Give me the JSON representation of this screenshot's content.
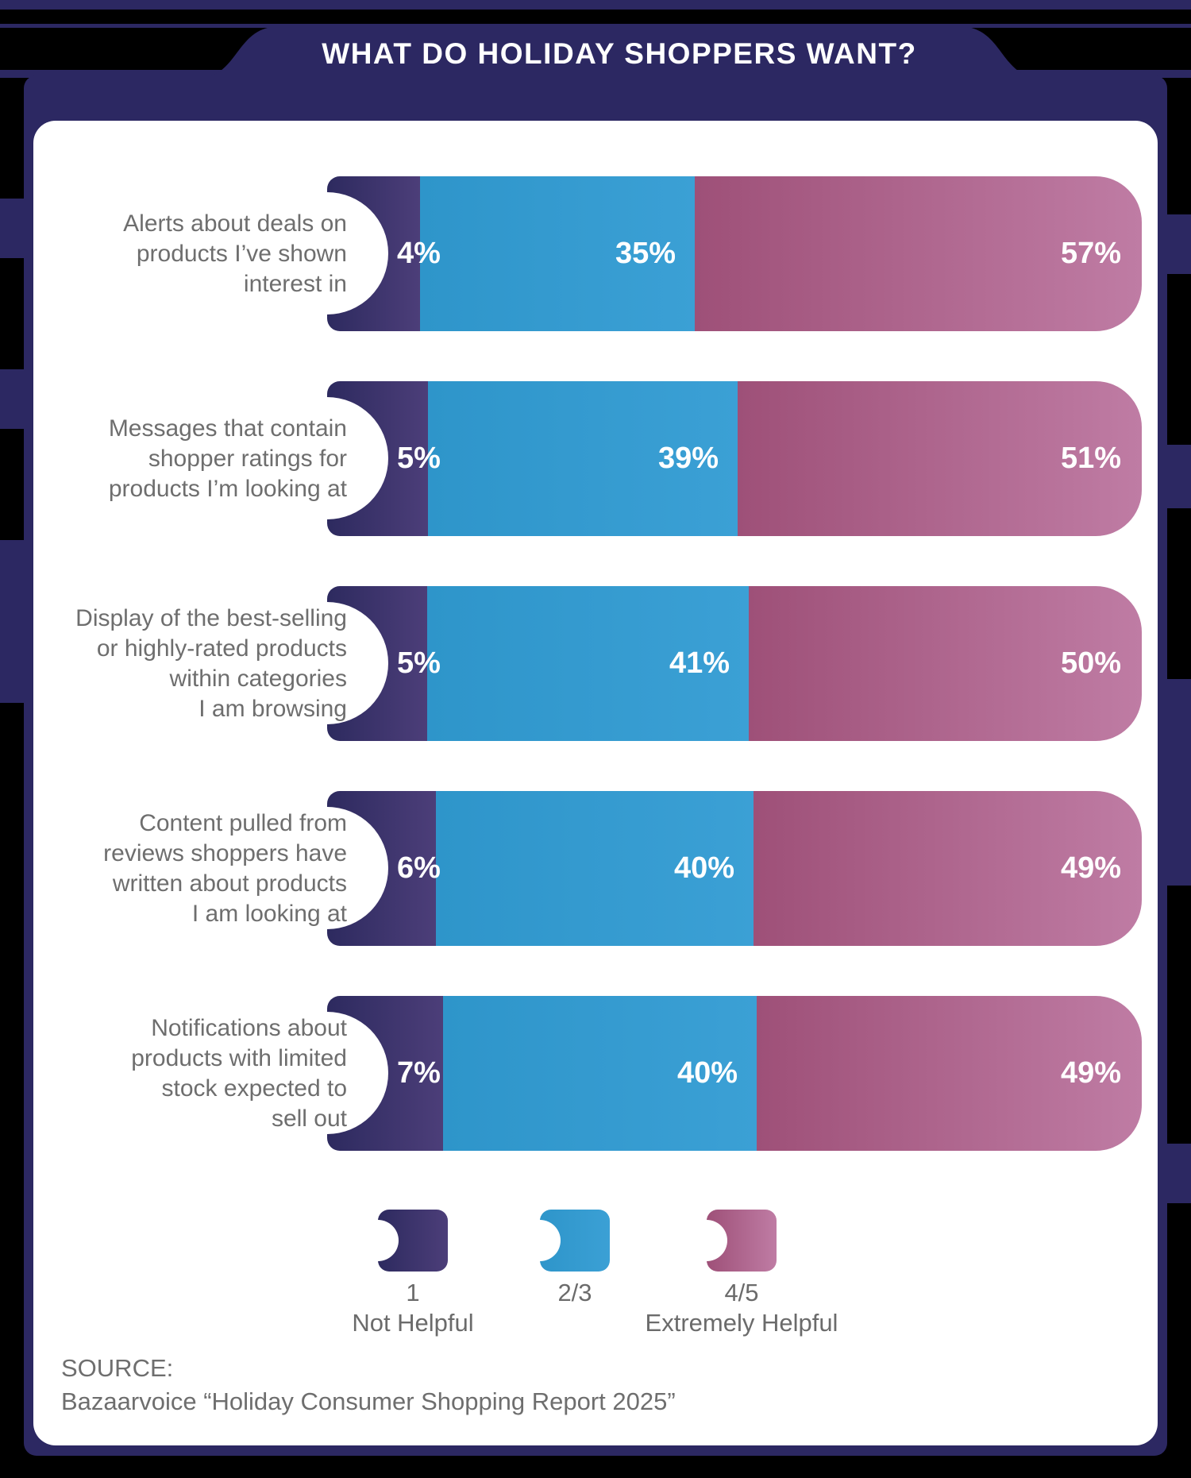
{
  "title": "WHAT DO HOLIDAY SHOPPERS WANT?",
  "colors": {
    "navy_bg": "#2c2862",
    "segment1_start": "#2d2a5f",
    "segment1_end": "#4c3e79",
    "segment2_start": "#2e95ca",
    "segment2_end": "#3ba0d5",
    "segment3_start": "#9e5078",
    "segment3_end": "#bf7ca4",
    "label_gray": "#6e6e6e",
    "value_text": "#ffffff"
  },
  "chart_data": {
    "type": "bar",
    "orientation": "horizontal-stacked",
    "value_suffix": "%",
    "categories": [
      [
        "Alerts about deals on",
        "products I’ve shown",
        "interest in"
      ],
      [
        "Messages that contain",
        "shopper ratings for",
        "products I’m looking at"
      ],
      [
        "Display of the best-selling",
        "or highly-rated products",
        "within categories",
        "I am browsing"
      ],
      [
        "Content pulled from",
        "reviews shoppers have",
        "written about products",
        "I am looking at"
      ],
      [
        "Notifications about",
        "products with limited",
        "stock expected to",
        "sell out"
      ]
    ],
    "series": [
      {
        "name": "1 Not Helpful",
        "values": [
          4,
          5,
          5,
          6,
          7
        ]
      },
      {
        "name": "2/3",
        "values": [
          35,
          39,
          41,
          40,
          40
        ]
      },
      {
        "name": "4/5 Extremely Helpful",
        "values": [
          57,
          51,
          50,
          49,
          49
        ]
      }
    ],
    "legend_position": "bottom",
    "grid": false
  },
  "legend": {
    "items": [
      {
        "value": "1",
        "desc": "Not Helpful"
      },
      {
        "value": "2/3",
        "desc": ""
      },
      {
        "value": "4/5",
        "desc": "Extremely Helpful"
      }
    ]
  },
  "source": {
    "label": "SOURCE:",
    "text": "Bazaarvoice “Holiday Consumer Shopping Report 2025”"
  }
}
